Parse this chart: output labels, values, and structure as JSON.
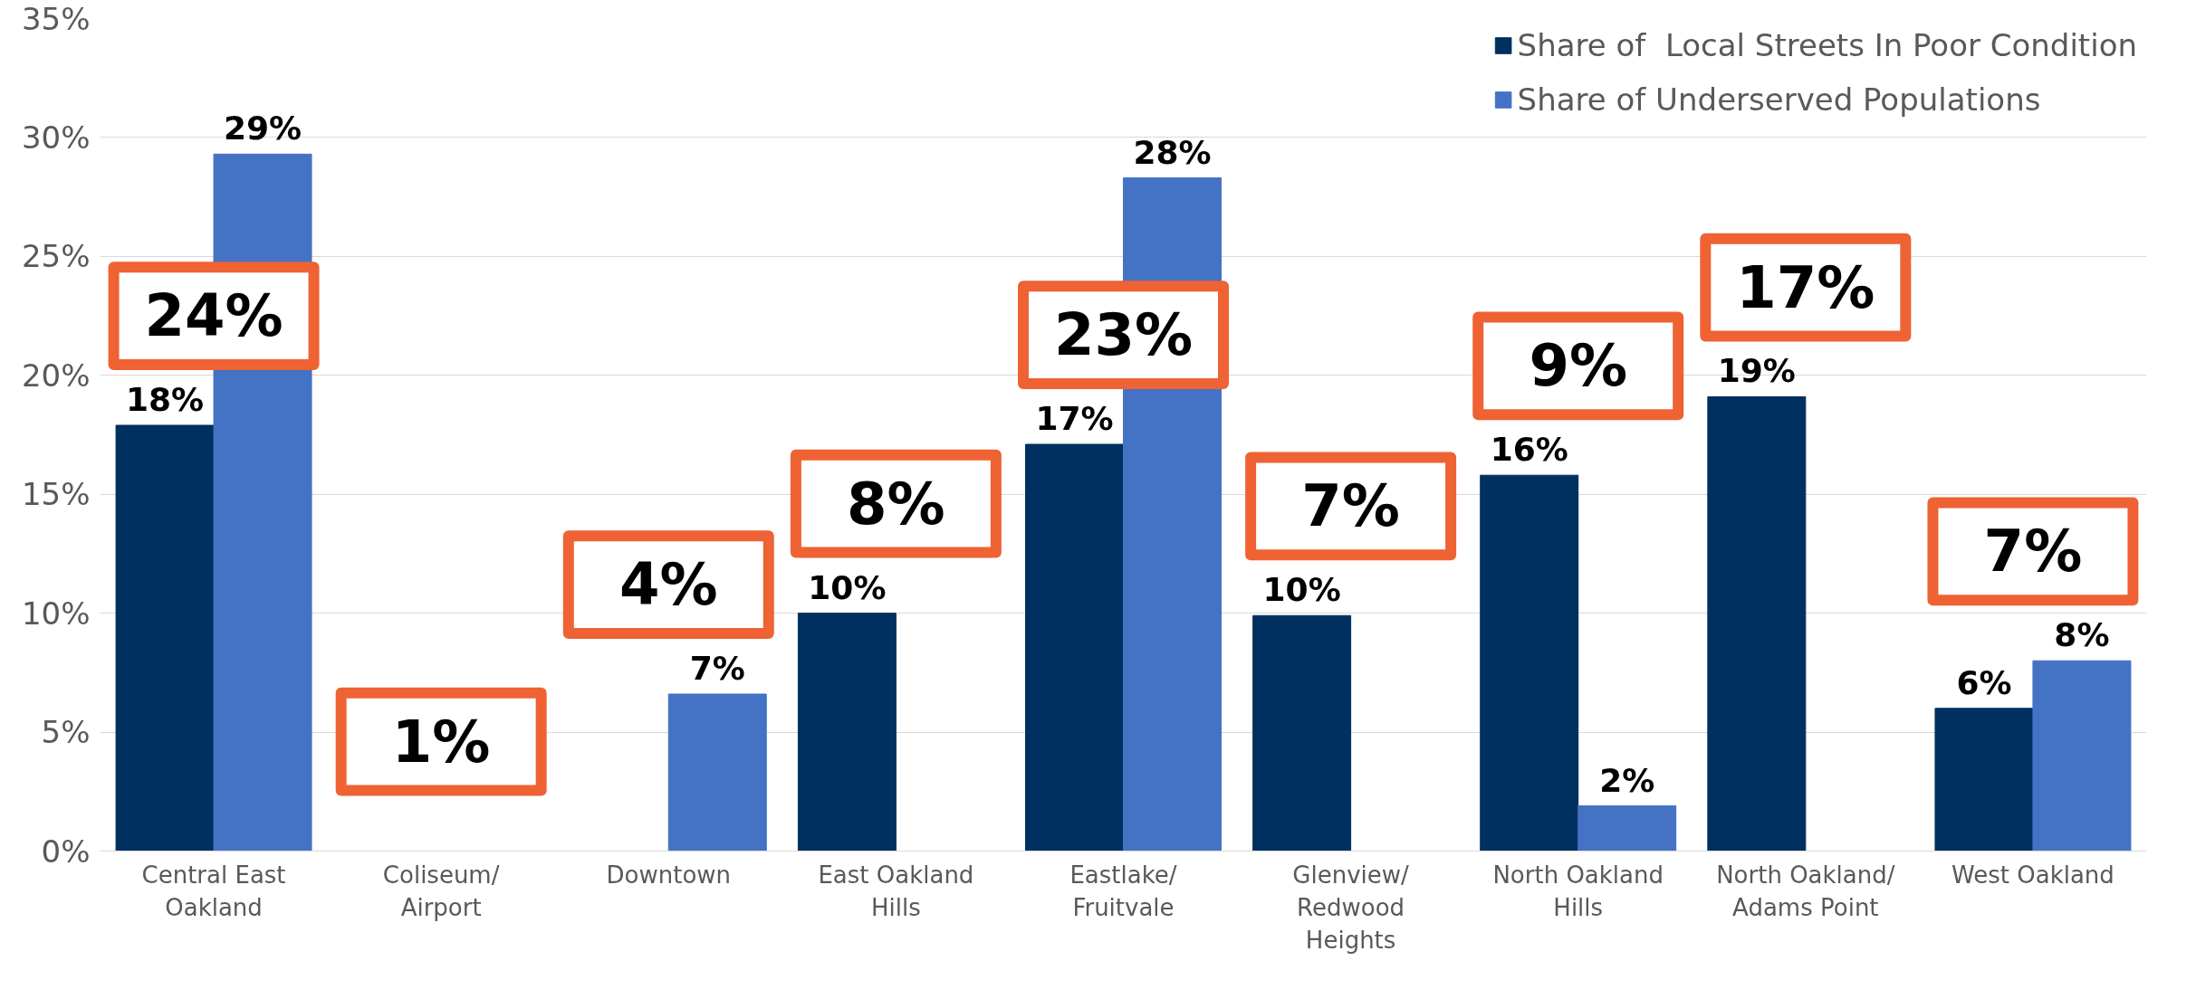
{
  "chart_data": {
    "type": "bar",
    "categories": [
      "Central East Oakland",
      "Coliseum/ Airport",
      "Downtown",
      "East Oakland Hills",
      "Eastlake/ Fruitvale",
      "Glenview/ Redwood Heights",
      "North Oakland Hills",
      "North Oakland/ Adams Point",
      "West Oakland"
    ],
    "series": [
      {
        "name": "Share of  Local Streets In Poor Condition",
        "color": "#00305f",
        "values": [
          17.9,
          null,
          null,
          10,
          17.1,
          9.9,
          15.8,
          19.1,
          6
        ],
        "value_labels": [
          "18%",
          null,
          null,
          "10%",
          "17%",
          "10%",
          "16%",
          "19%",
          "6%"
        ]
      },
      {
        "name": "Share of Underserved Populations",
        "color": "#4472c4",
        "values": [
          29.3,
          null,
          6.6,
          null,
          28.3,
          null,
          1.9,
          null,
          8
        ],
        "value_labels": [
          "29%",
          null,
          "7%",
          null,
          "28%",
          null,
          "2%",
          null,
          "8%"
        ]
      }
    ],
    "annotations": [
      "24%",
      "1%",
      "4%",
      "8%",
      "23%",
      "7%",
      "9%",
      "17%",
      "7%"
    ],
    "ylim": [
      0,
      35
    ],
    "yticks": [
      {
        "value": 0,
        "label": "0%"
      },
      {
        "value": 5,
        "label": "5%"
      },
      {
        "value": 10,
        "label": "10%"
      },
      {
        "value": 15,
        "label": "15%"
      },
      {
        "value": 20,
        "label": "20%"
      },
      {
        "value": 25,
        "label": "25%"
      },
      {
        "value": 30,
        "label": "30%"
      },
      {
        "value": 35,
        "label": "35%"
      }
    ],
    "grid": "y",
    "legend": "top right"
  }
}
